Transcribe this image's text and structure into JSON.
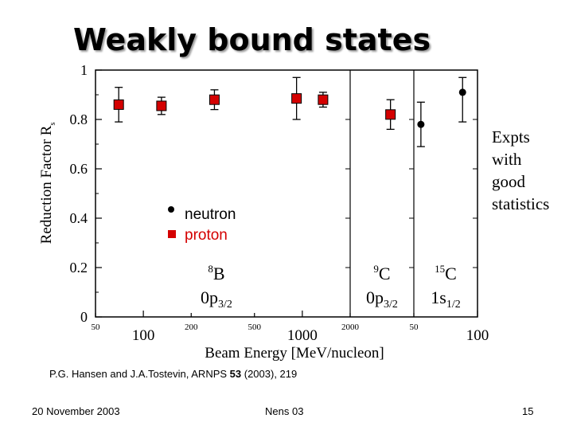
{
  "slide": {
    "title": "Weakly bound states",
    "note_lines": [
      "Expts",
      "with",
      "good",
      "statistics"
    ],
    "citation_prefix": "P.G. Hansen and J.A.Tostevin, ARNPS ",
    "citation_volume": "53",
    "citation_suffix": " (2003), 219",
    "footer_date": "20 November 2003",
    "footer_conf": "Nens 03",
    "footer_page": "15"
  },
  "chart_data": {
    "type": "scatter",
    "ylabel_main": "Reduction Factor R",
    "ylabel_sub": "s",
    "xlabel": "Beam Energy  [MeV/nucleon]",
    "ylim": [
      0,
      1
    ],
    "y_ticks": [
      "0",
      "0.2",
      "0.4",
      "0.6",
      "0.8",
      "1"
    ],
    "y_tick_values": [
      0,
      0.2,
      0.4,
      0.6,
      0.8,
      1.0
    ],
    "legend": [
      {
        "label": "neutron",
        "marker": "dot",
        "color": "#000000"
      },
      {
        "label": "proton",
        "marker": "square",
        "color": "#d40000"
      }
    ],
    "panels": [
      {
        "nucleus_mass": "8",
        "nucleus_symbol": "B",
        "orbital": "0p",
        "orbital_sub": "3/2",
        "xscale": "log",
        "xlim": [
          50,
          2000
        ],
        "x_ticks": [
          {
            "value": 50,
            "label": "50",
            "size": "small"
          },
          {
            "value": 100,
            "label": "100",
            "size": "large"
          },
          {
            "value": 200,
            "label": "200",
            "size": "small"
          },
          {
            "value": 500,
            "label": "500",
            "size": "small"
          },
          {
            "value": 1000,
            "label": "1000",
            "size": "large"
          },
          {
            "value": 2000,
            "label": "2000",
            "size": "small"
          }
        ],
        "series": [
          {
            "name": "proton",
            "marker": "square",
            "color": "#d40000",
            "points": [
              {
                "x": 70,
                "y": 0.86,
                "ylo": 0.79,
                "yhi": 0.93
              },
              {
                "x": 130,
                "y": 0.855,
                "ylo": 0.82,
                "yhi": 0.89
              },
              {
                "x": 280,
                "y": 0.88,
                "ylo": 0.84,
                "yhi": 0.92
              },
              {
                "x": 920,
                "y": 0.885,
                "ylo": 0.8,
                "yhi": 0.97
              },
              {
                "x": 1350,
                "y": 0.88,
                "ylo": 0.85,
                "yhi": 0.91
              }
            ]
          }
        ]
      },
      {
        "nucleus_mass": "9",
        "nucleus_symbol": "C",
        "orbital": "0p",
        "orbital_sub": "3/2",
        "xscale": "log",
        "xlim": [
          2000,
          100
        ],
        "x_ticks": [],
        "series": [
          {
            "name": "proton",
            "marker": "square",
            "color": "#d40000",
            "points": [
              {
                "x": 300,
                "y": 0.82,
                "ylo": 0.76,
                "yhi": 0.88
              }
            ]
          }
        ]
      },
      {
        "nucleus_mass": "15",
        "nucleus_symbol": "C",
        "orbital": "1s",
        "orbital_sub": "1/2",
        "xscale": "log",
        "xlim": [
          50,
          100
        ],
        "x_ticks": [
          {
            "value": 50,
            "label": "50",
            "size": "small"
          },
          {
            "value": 100,
            "label": "100",
            "size": "large"
          }
        ],
        "series": [
          {
            "name": "neutron",
            "marker": "dot",
            "color": "#000000",
            "points": [
              {
                "x": 54,
                "y": 0.78,
                "ylo": 0.69,
                "yhi": 0.87
              },
              {
                "x": 85,
                "y": 0.91,
                "ylo": 0.79,
                "yhi": 0.97
              }
            ]
          }
        ]
      }
    ],
    "grid": false
  }
}
